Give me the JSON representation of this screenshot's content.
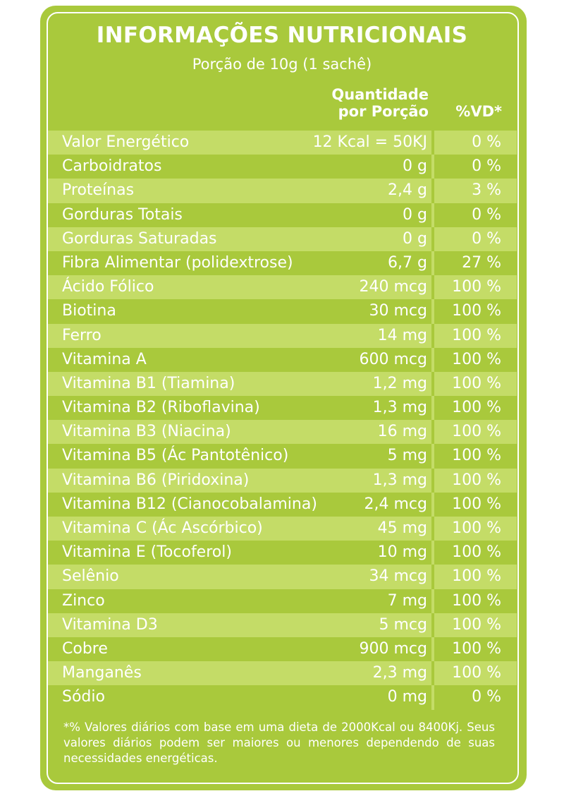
{
  "header": {
    "title": "INFORMAÇÕES NUTRICIONAIS",
    "subtitle": "Porção de 10g (1 sachê)",
    "col_quantity_line1": "Quantidade",
    "col_quantity_line2": "por Porção",
    "col_vd": "%VD*"
  },
  "rows": [
    {
      "name": "Valor Energético",
      "amount": "12 Kcal = 50KJ",
      "vd": "0 %"
    },
    {
      "name": "Carboidratos",
      "amount": "0 g",
      "vd": "0 %"
    },
    {
      "name": "Proteínas",
      "amount": "2,4 g",
      "vd": "3 %"
    },
    {
      "name": "Gorduras Totais",
      "amount": "0 g",
      "vd": "0 %"
    },
    {
      "name": "Gorduras Saturadas",
      "amount": "0 g",
      "vd": "0 %"
    },
    {
      "name": "Fibra Alimentar (polidextrose)",
      "amount": "6,7 g",
      "vd": "27 %"
    },
    {
      "name": "Ácido Fólico",
      "amount": "240 mcg",
      "vd": "100 %"
    },
    {
      "name": "Biotina",
      "amount": "30 mcg",
      "vd": "100 %"
    },
    {
      "name": "Ferro",
      "amount": "14 mg",
      "vd": "100 %"
    },
    {
      "name": "Vitamina A",
      "amount": "600 mcg",
      "vd": "100 %"
    },
    {
      "name": "Vitamina B1 (Tiamina)",
      "amount": "1,2 mg",
      "vd": "100 %"
    },
    {
      "name": "Vitamina B2 (Riboflavina)",
      "amount": "1,3 mg",
      "vd": "100 %"
    },
    {
      "name": "Vitamina B3 (Niacina)",
      "amount": "16 mg",
      "vd": "100 %"
    },
    {
      "name": "Vitamina B5 (Ác Pantotênico)",
      "amount": "5 mg",
      "vd": "100 %"
    },
    {
      "name": "Vitamina B6 (Piridoxina)",
      "amount": "1,3 mg",
      "vd": "100 %"
    },
    {
      "name": "Vitamina B12 (Cianocobalamina)",
      "amount": "2,4 mcg",
      "vd": "100 %"
    },
    {
      "name": "Vitamina C (Ác Ascórbico)",
      "amount": "45 mg",
      "vd": "100 %"
    },
    {
      "name": "Vitamina E (Tocoferol)",
      "amount": "10 mg",
      "vd": "100 %"
    },
    {
      "name": "Selênio",
      "amount": "34 mcg",
      "vd": "100 %"
    },
    {
      "name": "Zinco",
      "amount": "7 mg",
      "vd": "100 %"
    },
    {
      "name": "Vitamina D3",
      "amount": "5 mcg",
      "vd": "100 %"
    },
    {
      "name": "Cobre",
      "amount": "900 mcg",
      "vd": "100 %"
    },
    {
      "name": "Manganês",
      "amount": "2,3 mg",
      "vd": "100 %"
    },
    {
      "name": "Sódio",
      "amount": "0 mg",
      "vd": "0 %"
    }
  ],
  "footnote": "*% Valores diários com base em uma dieta de 2000Kcal ou 8400Kj. Seus valores diários podem ser maiores ou menores dependendo de suas necessidades energéticas.",
  "colors": {
    "panel": "#a9c93c",
    "row_shade": "#c4dc67",
    "text": "#ffffff"
  }
}
